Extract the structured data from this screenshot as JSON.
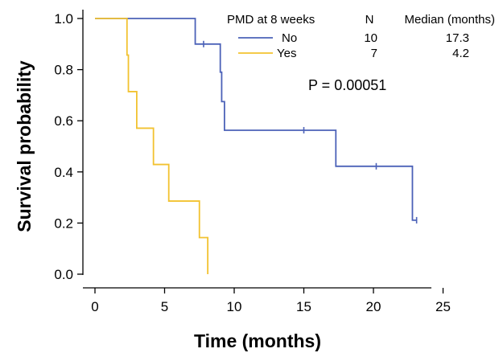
{
  "chart_data": {
    "type": "line",
    "subtype": "kaplan-meier step",
    "title": "",
    "xlabel": "Time (months)",
    "ylabel": "Survival probability",
    "xlim": [
      0,
      26
    ],
    "ylim": [
      0,
      1.0
    ],
    "xticks": [
      0,
      5,
      10,
      15,
      20,
      25
    ],
    "yticks": [
      0.0,
      0.2,
      0.4,
      0.6,
      0.8,
      1.0
    ],
    "xtick_labels": [
      "0",
      "5",
      "10",
      "15",
      "20",
      "25"
    ],
    "ytick_labels": [
      "0.0",
      "0.2",
      "0.4",
      "0.6",
      "0.8",
      "1.0"
    ],
    "grid": false,
    "legend": {
      "placement": "top-right",
      "group_header": "PMD at 8 weeks",
      "n_header": "N",
      "median_header": "Median (months)",
      "rows": [
        {
          "label": "No",
          "n": "10",
          "median": "17.3"
        },
        {
          "label": "Yes",
          "n": "7",
          "median": "4.2"
        }
      ]
    },
    "annotation": "P = 0.00051",
    "series": [
      {
        "name": "No",
        "color": "#4C62B8",
        "steps": [
          {
            "x": 0,
            "y": 1.0
          },
          {
            "x": 7.2,
            "y": 0.9
          },
          {
            "x": 9.0,
            "y": 0.79
          },
          {
            "x": 9.1,
            "y": 0.675
          },
          {
            "x": 9.3,
            "y": 0.563
          },
          {
            "x": 17.3,
            "y": 0.422
          },
          {
            "x": 22.8,
            "y": 0.211
          }
        ],
        "end_x": 23.1,
        "censored": [
          {
            "x": 7.8,
            "y": 0.9
          },
          {
            "x": 15.0,
            "y": 0.563
          },
          {
            "x": 20.2,
            "y": 0.422
          },
          {
            "x": 23.1,
            "y": 0.211
          }
        ]
      },
      {
        "name": "Yes",
        "color": "#F2C230",
        "steps": [
          {
            "x": 0,
            "y": 1.0
          },
          {
            "x": 2.3,
            "y": 0.857
          },
          {
            "x": 2.4,
            "y": 0.714
          },
          {
            "x": 3.0,
            "y": 0.571
          },
          {
            "x": 4.2,
            "y": 0.429
          },
          {
            "x": 5.3,
            "y": 0.286
          },
          {
            "x": 7.5,
            "y": 0.143
          },
          {
            "x": 8.1,
            "y": 0.0
          }
        ],
        "end_x": 8.1,
        "censored": []
      }
    ]
  }
}
